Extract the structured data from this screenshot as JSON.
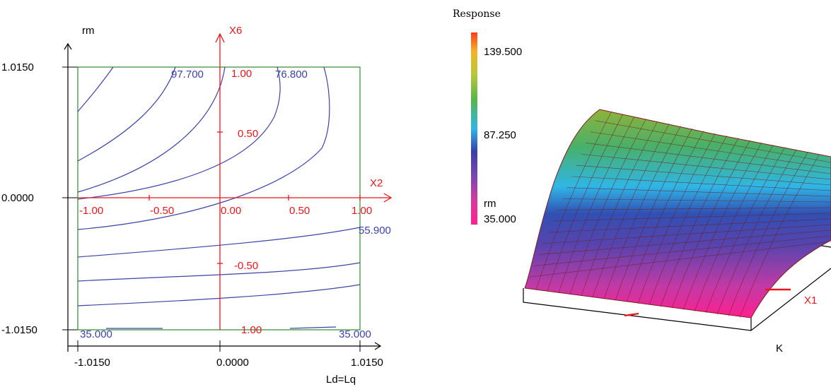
{
  "chart_data": [
    {
      "type": "contour",
      "xlabel": "Ld=Lq",
      "ylabel": "rm",
      "xlim": [
        -1.015,
        1.015
      ],
      "ylim": [
        -1.015,
        1.015
      ],
      "x_ticks": [
        "-1.0150",
        "0.0000",
        "1.0150"
      ],
      "y_ticks": [
        "1.0150",
        "0.0000",
        "-1.0150"
      ],
      "coded_axes": {
        "x_name": "X2",
        "y_name": "X6",
        "x_ticks": [
          "-1.00",
          "-0.50",
          "0.00",
          "0.50",
          "1.00"
        ],
        "y_ticks": [
          "1.00",
          "0.50",
          "-0.50",
          "1.00"
        ]
      },
      "contour_labels": [
        "97.700",
        "76.800",
        "55.900",
        "35.000",
        "35.000"
      ],
      "levels": [
        35.0,
        55.9,
        76.8,
        97.7
      ]
    },
    {
      "type": "surface",
      "legend_title": "Response",
      "colorbar_ticks": [
        "139.500",
        "87.250",
        "35.000"
      ],
      "colorbar_label": "rm",
      "zlim": [
        35.0,
        139.5
      ],
      "axis_labels": {
        "x1": "X1",
        "k": "K"
      },
      "colors": {
        "low": "#ff1f8f",
        "mid_low": "#3a3fa8",
        "mid": "#2fb6e6",
        "mid_high": "#55b64a",
        "high": "#ff3a1c"
      }
    }
  ]
}
